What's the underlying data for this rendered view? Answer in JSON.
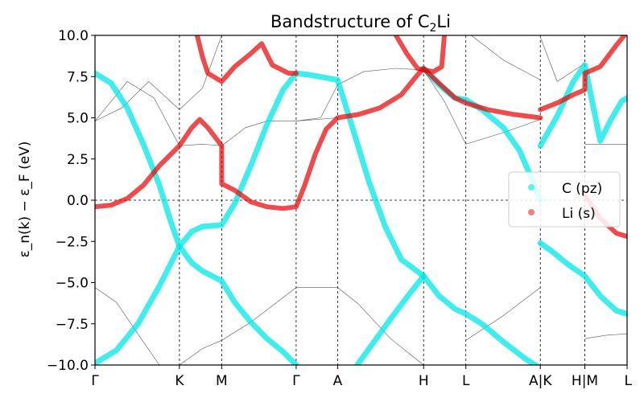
{
  "chart_data": {
    "type": "line",
    "title": "Bandstructure of C",
    "title_subscript": "2",
    "title_suffix": "Li",
    "ylabel": "ε_n(k) − ε_F (eV)",
    "ylim": [
      -10.0,
      10.0
    ],
    "yticks": [
      -10.0,
      -7.5,
      -5.0,
      -2.5,
      0.0,
      2.5,
      5.0,
      7.5,
      10.0
    ],
    "ytick_labels": [
      "−10.0",
      "−7.5",
      "−5.0",
      "−2.5",
      "0.0",
      "2.5",
      "5.0",
      "7.5",
      "10.0"
    ],
    "kpath": [
      {
        "label": "Γ",
        "x": 0.0
      },
      {
        "label": "K",
        "x": 1.571
      },
      {
        "label": "M",
        "x": 2.357
      },
      {
        "label": "Γ",
        "x": 3.743
      },
      {
        "label": "A",
        "x": 4.514
      },
      {
        "label": "H",
        "x": 6.114
      },
      {
        "label": "L",
        "x": 6.9
      },
      {
        "label": "A|K",
        "x": 8.286
      },
      {
        "label": "H|M",
        "x": 9.114
      },
      {
        "label": "L",
        "x": 9.9
      }
    ],
    "xlim": [
      0.0,
      9.9
    ],
    "fermi_level": 0.0,
    "colors": {
      "C (pz)": "#00e5e5",
      "Li (s)": "#e60000",
      "bands": "#555555"
    },
    "legend": {
      "placement": "right",
      "entries": [
        "C (pz)",
        "Li (s)"
      ]
    },
    "series": [
      {
        "name": "C (pz)",
        "points": [
          [
            0.0,
            7.7
          ],
          [
            0.3,
            7.1
          ],
          [
            0.6,
            5.6
          ],
          [
            0.9,
            3.4
          ],
          [
            1.2,
            0.9
          ],
          [
            1.4,
            -1.2
          ],
          [
            1.571,
            -2.8
          ],
          [
            1.8,
            -1.9
          ],
          [
            2.0,
            -1.6
          ],
          [
            2.357,
            -1.5
          ],
          [
            2.357,
            -1.5
          ],
          [
            2.6,
            -0.2
          ],
          [
            2.9,
            2.1
          ],
          [
            3.2,
            4.6
          ],
          [
            3.5,
            6.7
          ],
          [
            3.743,
            7.7
          ],
          [
            4.0,
            7.6
          ],
          [
            4.514,
            7.3
          ],
          [
            4.8,
            4.3
          ],
          [
            5.1,
            1.1
          ],
          [
            5.4,
            -1.6
          ],
          [
            5.7,
            -3.6
          ],
          [
            6.114,
            -4.6
          ],
          [
            6.4,
            -5.8
          ],
          [
            6.7,
            -6.6
          ],
          [
            6.9,
            -6.9
          ],
          [
            7.2,
            -7.5
          ],
          [
            7.6,
            -8.6
          ],
          [
            8.0,
            -9.6
          ],
          [
            8.286,
            -10.2
          ]
        ]
      },
      {
        "name": "C (pz) lower",
        "points": [
          [
            0.0,
            -9.9
          ],
          [
            0.4,
            -9.1
          ],
          [
            0.8,
            -7.5
          ],
          [
            1.2,
            -5.2
          ],
          [
            1.571,
            -2.8
          ],
          [
            1.8,
            -3.8
          ],
          [
            2.0,
            -4.3
          ],
          [
            2.357,
            -4.9
          ],
          [
            2.6,
            -6.2
          ],
          [
            2.9,
            -7.4
          ],
          [
            3.2,
            -8.4
          ],
          [
            3.5,
            -9.2
          ],
          [
            3.743,
            -10.0
          ]
        ]
      },
      {
        "name": "C (pz) upper",
        "points": [
          [
            6.114,
            -4.6
          ],
          [
            5.8,
            -5.9
          ],
          [
            5.5,
            -7.2
          ],
          [
            5.3,
            -8.1
          ],
          [
            5.1,
            -9.0
          ],
          [
            4.9,
            -9.9
          ],
          [
            4.85,
            -10.2
          ]
        ]
      },
      {
        "name": "C (pz) H-L",
        "points": [
          [
            6.114,
            8.0
          ],
          [
            6.4,
            7.0
          ],
          [
            6.7,
            6.2
          ],
          [
            6.9,
            6.1
          ],
          [
            7.2,
            5.5
          ],
          [
            7.6,
            4.4
          ],
          [
            7.9,
            3.0
          ],
          [
            8.1,
            1.5
          ],
          [
            8.286,
            0.0
          ]
        ]
      },
      {
        "name": "C (pz) right",
        "points": [
          [
            8.286,
            -2.6
          ],
          [
            8.5,
            -3.1
          ],
          [
            8.8,
            -3.9
          ],
          [
            9.114,
            -4.6
          ],
          [
            9.4,
            -5.8
          ],
          [
            9.7,
            -6.7
          ],
          [
            9.9,
            -6.9
          ]
        ]
      },
      {
        "name": "C (pz) right upper",
        "points": [
          [
            8.286,
            3.3
          ],
          [
            8.6,
            5.1
          ],
          [
            8.9,
            7.2
          ],
          [
            9.114,
            8.2
          ],
          [
            9.4,
            3.6
          ],
          [
            9.6,
            4.9
          ],
          [
            9.8,
            6.0
          ],
          [
            9.9,
            6.2
          ]
        ]
      },
      {
        "name": "Li (s)",
        "points": [
          [
            0.0,
            -0.4
          ],
          [
            0.3,
            -0.3
          ],
          [
            0.6,
            0.1
          ],
          [
            0.9,
            0.9
          ],
          [
            1.2,
            2.1
          ],
          [
            1.571,
            3.3
          ],
          [
            1.8,
            4.4
          ],
          [
            1.95,
            4.9
          ],
          [
            2.1,
            4.4
          ],
          [
            2.357,
            3.3
          ],
          [
            2.357,
            1.0
          ],
          [
            2.6,
            0.6
          ],
          [
            2.9,
            -0.1
          ],
          [
            3.2,
            -0.4
          ],
          [
            3.5,
            -0.5
          ],
          [
            3.743,
            -0.4
          ],
          [
            3.9,
            0.9
          ],
          [
            4.1,
            2.8
          ],
          [
            4.3,
            4.3
          ],
          [
            4.514,
            5.0
          ],
          [
            4.9,
            5.2
          ],
          [
            5.3,
            5.6
          ],
          [
            5.7,
            6.4
          ],
          [
            6.0,
            7.6
          ],
          [
            6.114,
            8.0
          ],
          [
            6.4,
            7.1
          ],
          [
            6.7,
            6.2
          ],
          [
            6.9,
            5.9
          ],
          [
            7.3,
            5.5
          ],
          [
            7.8,
            5.2
          ],
          [
            8.286,
            5.0
          ]
        ]
      },
      {
        "name": "Li (s) upper",
        "points": [
          [
            1.9,
            10.0
          ],
          [
            2.0,
            8.7
          ],
          [
            2.1,
            7.7
          ],
          [
            2.357,
            7.2
          ],
          [
            2.6,
            8.1
          ],
          [
            2.9,
            8.9
          ],
          [
            3.1,
            9.5
          ],
          [
            3.3,
            8.2
          ],
          [
            3.6,
            7.7
          ],
          [
            3.743,
            7.7
          ]
        ]
      },
      {
        "name": "Li (s) H",
        "points": [
          [
            5.6,
            10.0
          ],
          [
            5.8,
            8.9
          ],
          [
            6.0,
            8.0
          ],
          [
            6.114,
            7.9
          ],
          [
            6.3,
            7.8
          ],
          [
            6.45,
            8.1
          ],
          [
            6.5,
            10.0
          ]
        ]
      },
      {
        "name": "Li (s) right",
        "points": [
          [
            8.286,
            5.5
          ],
          [
            8.6,
            5.9
          ],
          [
            8.9,
            6.4
          ],
          [
            9.114,
            6.7
          ],
          [
            9.114,
            7.7
          ],
          [
            9.4,
            8.1
          ],
          [
            9.7,
            9.4
          ],
          [
            9.85,
            10.0
          ]
        ]
      },
      {
        "name": "Li (s) right low",
        "points": [
          [
            9.114,
            0.3
          ],
          [
            9.4,
            -1.1
          ],
          [
            9.7,
            -2.0
          ],
          [
            9.9,
            -2.2
          ]
        ]
      }
    ],
    "grey_bands": [
      [
        [
          0.0,
          4.8
        ],
        [
          0.5,
          5.6
        ],
        [
          1.0,
          7.2
        ],
        [
          1.571,
          5.5
        ],
        [
          2.0,
          6.8
        ],
        [
          2.357,
          10.0
        ]
      ],
      [
        [
          0.0,
          4.8
        ],
        [
          0.6,
          7.2
        ],
        [
          1.1,
          6.2
        ],
        [
          1.571,
          3.3
        ],
        [
          2.0,
          3.4
        ],
        [
          2.357,
          3.3
        ],
        [
          2.8,
          4.4
        ],
        [
          3.2,
          4.8
        ],
        [
          3.743,
          4.8
        ],
        [
          4.514,
          5.0
        ]
      ],
      [
        [
          0.0,
          -5.3
        ],
        [
          0.4,
          -6.2
        ],
        [
          0.9,
          -8.6
        ],
        [
          1.2,
          -10.0
        ]
      ],
      [
        [
          1.571,
          -10.0
        ],
        [
          2.0,
          -9.0
        ],
        [
          2.357,
          -8.5
        ],
        [
          2.9,
          -7.4
        ],
        [
          3.743,
          -5.3
        ],
        [
          4.514,
          -5.3
        ],
        [
          4.9,
          -6.3
        ],
        [
          5.5,
          -8.4
        ],
        [
          6.114,
          -10.0
        ]
      ],
      [
        [
          3.743,
          4.8
        ],
        [
          4.2,
          5.0
        ],
        [
          4.514,
          7.0
        ],
        [
          5.0,
          7.8
        ],
        [
          5.6,
          8.0
        ],
        [
          6.114,
          7.9
        ],
        [
          6.5,
          6.0
        ],
        [
          6.9,
          3.4
        ],
        [
          7.6,
          4.1
        ],
        [
          8.286,
          4.9
        ]
      ],
      [
        [
          6.9,
          -8.5
        ],
        [
          7.6,
          -7.0
        ],
        [
          8.286,
          -5.3
        ]
      ],
      [
        [
          7.0,
          10.0
        ],
        [
          7.6,
          8.5
        ],
        [
          8.286,
          7.3
        ]
      ],
      [
        [
          8.286,
          9.9
        ],
        [
          8.6,
          7.2
        ],
        [
          9.114,
          8.3
        ]
      ],
      [
        [
          9.114,
          3.4
        ],
        [
          9.9,
          3.4
        ]
      ],
      [
        [
          9.114,
          -8.4
        ],
        [
          9.5,
          -8.2
        ],
        [
          9.9,
          -8.1
        ]
      ]
    ]
  }
}
